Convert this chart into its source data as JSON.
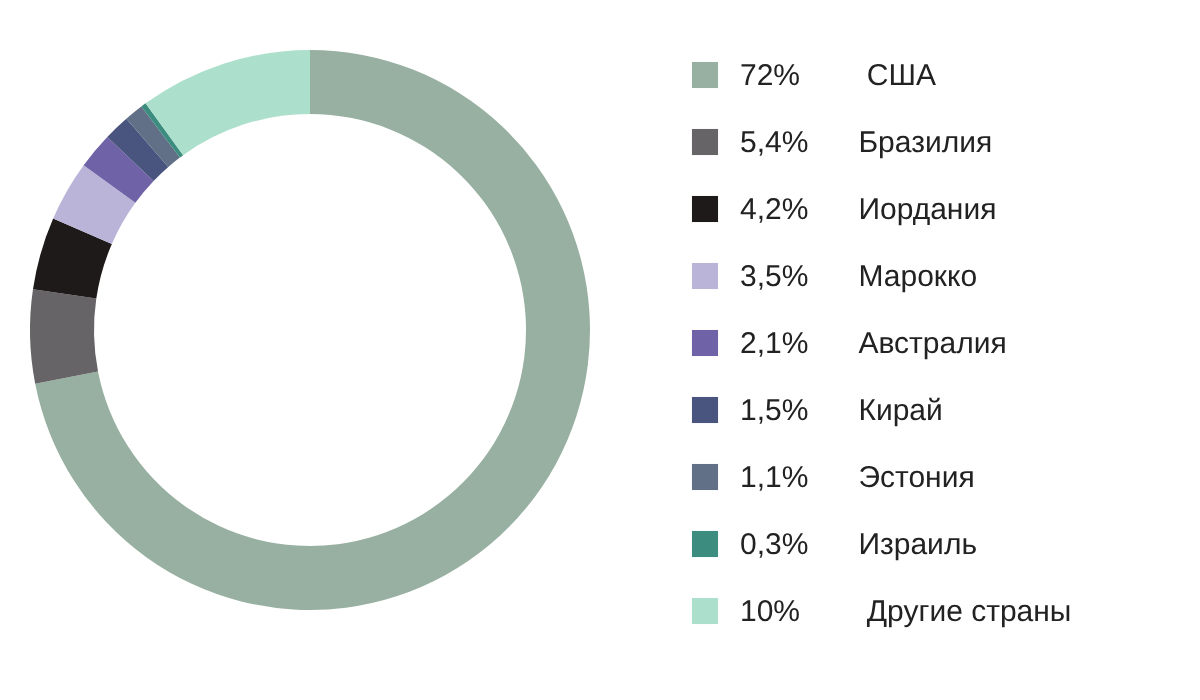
{
  "chart_data": {
    "type": "donut",
    "categories": [
      "США",
      "Бразилия",
      "Иордания",
      "Марокко",
      "Австралия",
      "Кирай",
      "Эстония",
      "Израиль",
      "Другие страны"
    ],
    "values": [
      72,
      5.4,
      4.2,
      3.5,
      2.1,
      1.5,
      1.1,
      0.3,
      10
    ],
    "value_labels": [
      "72%",
      "5,4%",
      "4,2%",
      "3,5%",
      "2,1%",
      "1,5%",
      "1,1%",
      "0,3%",
      "10%"
    ],
    "colors": [
      "#98b0a1",
      "#666466",
      "#1e1a19",
      "#bab5d8",
      "#6f62a6",
      "#4a557f",
      "#617087",
      "#3d8c80",
      "#ade0cc"
    ],
    "legend": "right"
  }
}
